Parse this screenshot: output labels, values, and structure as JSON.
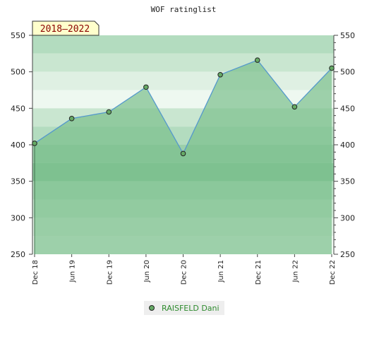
{
  "chart_data": {
    "type": "area",
    "title": "WOF ratinglist",
    "period_badge": "2018–2022",
    "xlabel": "",
    "ylabel": "",
    "categories": [
      "Dec 18",
      "Jun 19",
      "Dec 19",
      "Jun 20",
      "Dec 20",
      "Jun 21",
      "Dec 21",
      "Jun 22",
      "Dec 22"
    ],
    "ylim": [
      250,
      550
    ],
    "yticks": [
      250,
      300,
      350,
      400,
      450,
      500,
      550
    ],
    "y_axes": "left-and-right",
    "grid": false,
    "legend": "bottom-center",
    "series": [
      {
        "name": "RAISFELD Dani",
        "values": [
          402,
          436,
          445,
          479,
          388,
          496,
          516,
          452,
          505
        ],
        "line_color": "#5599cc",
        "marker_color": "#66aa66",
        "fill_color": "#7bbf8c"
      }
    ],
    "band_colors": [
      "#b3dcbf",
      "#c9e6d0",
      "#dff0e3",
      "#eef8f0",
      "#c9e6d0",
      "#b3dcbf",
      "#9ccfab",
      "#88c69a"
    ]
  }
}
